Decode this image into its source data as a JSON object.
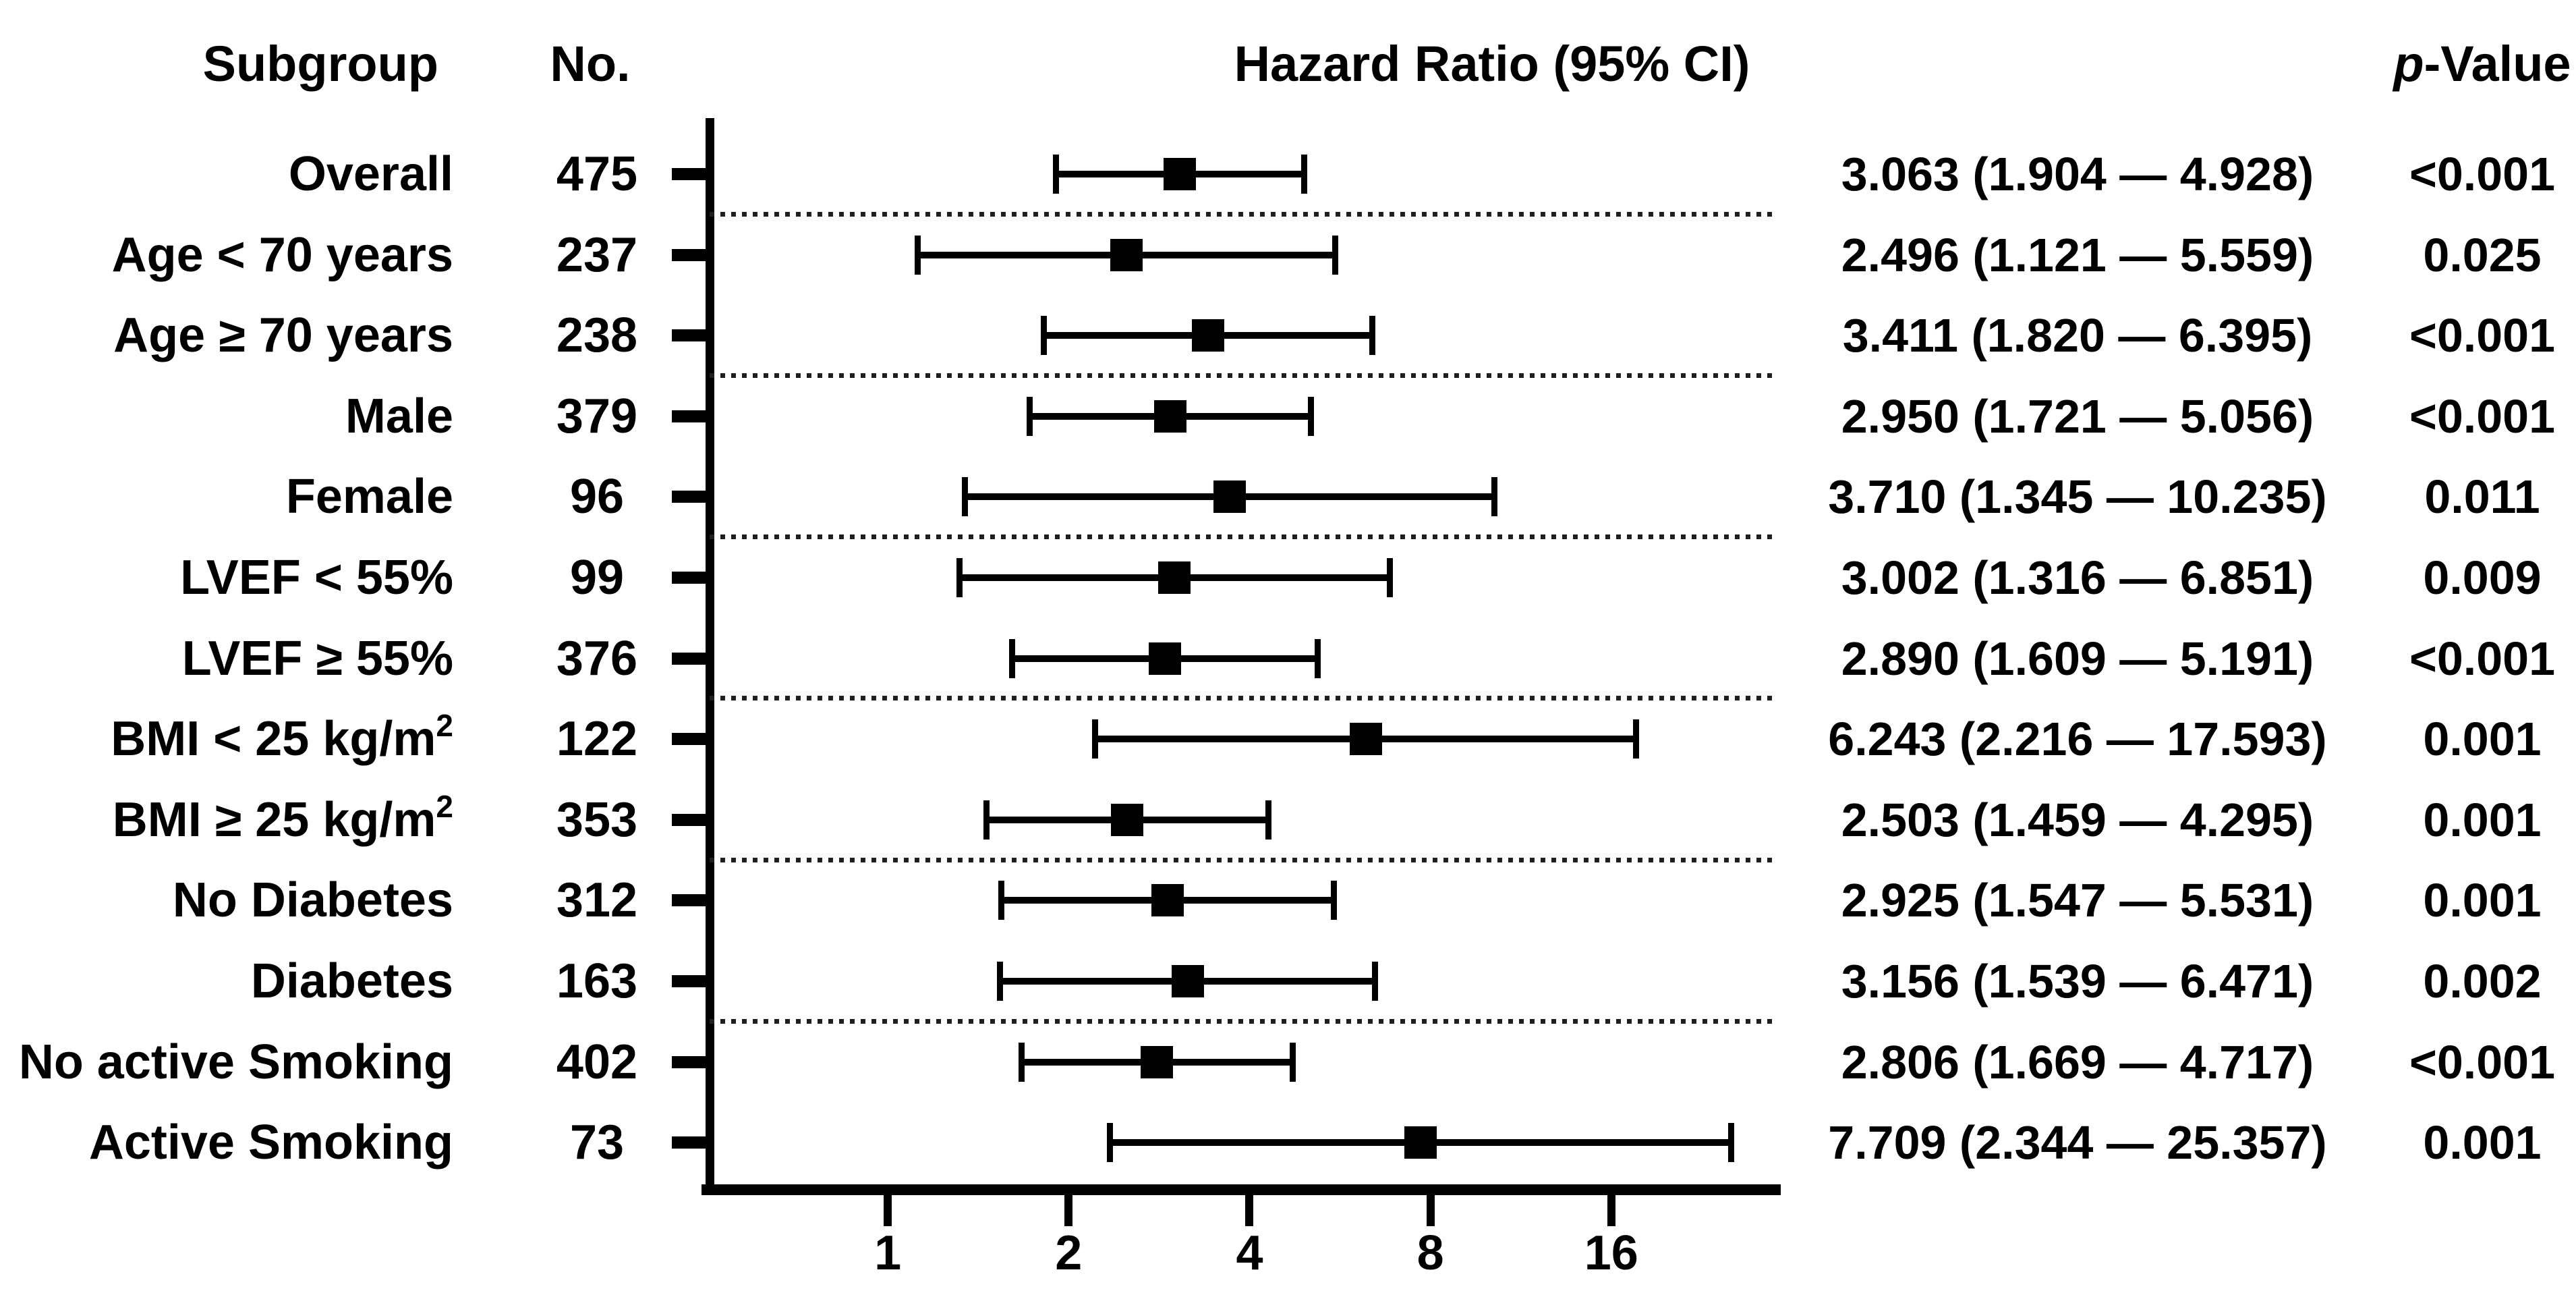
{
  "figure": {
    "columns": {
      "subgroup": "Subgroup",
      "n": "No.",
      "hazard_ratio": "Hazard Ratio (95% CI)",
      "p_italic": "p",
      "p_rest": "-Value"
    }
  },
  "chart_data": {
    "type": "forest",
    "title": "Hazard Ratio (95% CI) by Subgroup",
    "x_scale": "log2",
    "x_ticks": [
      "1",
      "2",
      "4",
      "8",
      "16"
    ],
    "x_tick_values": [
      1,
      2,
      4,
      8,
      16
    ],
    "x_range": [
      0.5,
      30
    ],
    "grid": false,
    "colors": {
      "marker": "#000000",
      "line": "#000000",
      "separator": "#1f1f1f",
      "background": "#ffffff",
      "text": "#000000"
    },
    "rows": [
      {
        "label": "Overall",
        "label_sup": "",
        "n": "475",
        "hr": 3.063,
        "ci_low": 1.904,
        "ci_high": 4.928,
        "hr_text": "3.063 (1.904 — 4.928)",
        "p": "<0.001",
        "separator_after": true
      },
      {
        "label": "Age < 70 years",
        "label_sup": "",
        "n": "237",
        "hr": 2.496,
        "ci_low": 1.121,
        "ci_high": 5.559,
        "hr_text": "2.496 (1.121 — 5.559)",
        "p": "0.025",
        "separator_after": false
      },
      {
        "label": "Age ≥ 70 years",
        "label_sup": "",
        "n": "238",
        "hr": 3.411,
        "ci_low": 1.82,
        "ci_high": 6.395,
        "hr_text": "3.411 (1.820 — 6.395)",
        "p": "<0.001",
        "separator_after": true
      },
      {
        "label": "Male",
        "label_sup": "",
        "n": "379",
        "hr": 2.95,
        "ci_low": 1.721,
        "ci_high": 5.056,
        "hr_text": "2.950 (1.721 — 5.056)",
        "p": "<0.001",
        "separator_after": false
      },
      {
        "label": "Female",
        "label_sup": "",
        "n": "96",
        "hr": 3.71,
        "ci_low": 1.345,
        "ci_high": 10.235,
        "hr_text": "3.710 (1.345 — 10.235)",
        "p": "0.011",
        "separator_after": true
      },
      {
        "label": "LVEF < 55%",
        "label_sup": "",
        "n": "99",
        "hr": 3.002,
        "ci_low": 1.316,
        "ci_high": 6.851,
        "hr_text": "3.002 (1.316 — 6.851)",
        "p": "0.009",
        "separator_after": false
      },
      {
        "label": "LVEF ≥ 55%",
        "label_sup": "",
        "n": "376",
        "hr": 2.89,
        "ci_low": 1.609,
        "ci_high": 5.191,
        "hr_text": "2.890 (1.609 — 5.191)",
        "p": "<0.001",
        "separator_after": true
      },
      {
        "label": "BMI < 25 kg/m",
        "label_sup": "2",
        "n": "122",
        "hr": 6.243,
        "ci_low": 2.216,
        "ci_high": 17.593,
        "hr_text": "6.243 (2.216 — 17.593)",
        "p": "0.001",
        "separator_after": false
      },
      {
        "label": "BMI ≥ 25 kg/m",
        "label_sup": "2",
        "n": "353",
        "hr": 2.503,
        "ci_low": 1.459,
        "ci_high": 4.295,
        "hr_text": "2.503 (1.459 — 4.295)",
        "p": "0.001",
        "separator_after": true
      },
      {
        "label": "No Diabetes",
        "label_sup": "",
        "n": "312",
        "hr": 2.925,
        "ci_low": 1.547,
        "ci_high": 5.531,
        "hr_text": "2.925 (1.547 — 5.531)",
        "p": "0.001",
        "separator_after": false
      },
      {
        "label": "Diabetes",
        "label_sup": "",
        "n": "163",
        "hr": 3.156,
        "ci_low": 1.539,
        "ci_high": 6.471,
        "hr_text": "3.156 (1.539 — 6.471)",
        "p": "0.002",
        "separator_after": true
      },
      {
        "label": "No active Smoking",
        "label_sup": "",
        "n": "402",
        "hr": 2.806,
        "ci_low": 1.669,
        "ci_high": 4.717,
        "hr_text": "2.806 (1.669 — 4.717)",
        "p": "<0.001",
        "separator_after": false
      },
      {
        "label": "Active Smoking",
        "label_sup": "",
        "n": "73",
        "hr": 7.709,
        "ci_low": 2.344,
        "ci_high": 25.357,
        "hr_text": "7.709 (2.344 — 25.357)",
        "p": "0.001",
        "separator_after": false
      }
    ]
  }
}
